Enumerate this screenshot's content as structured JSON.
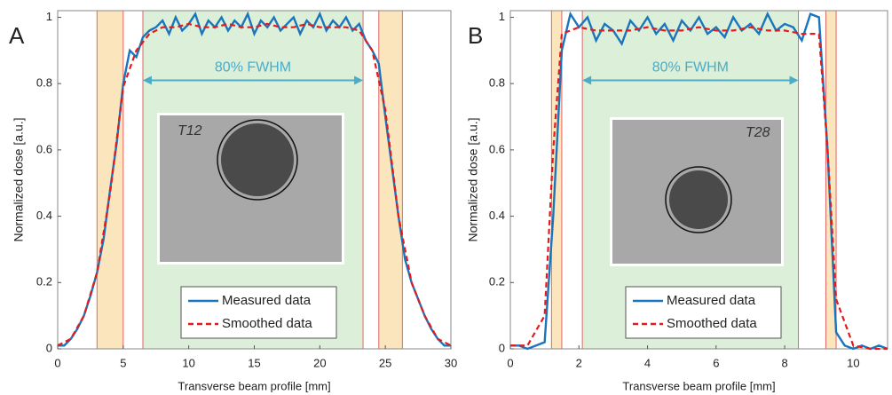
{
  "chart_data": [
    {
      "type": "line",
      "panel_label": "A",
      "xlabel": "Transverse beam profile [mm]",
      "ylabel": "Normalized dose [a.u.]",
      "xlim": [
        0,
        30
      ],
      "ylim": [
        0,
        1.02
      ],
      "xticks": [
        0,
        5,
        10,
        15,
        20,
        25,
        30
      ],
      "yticks": [
        0,
        0.2,
        0.4,
        0.6,
        0.8,
        1
      ],
      "legend": "lower center",
      "regions": [
        {
          "start": 3,
          "end": 5,
          "color": "#fbe5bd"
        },
        {
          "start": 6.5,
          "end": 23.3,
          "color": "#dcefd8"
        },
        {
          "start": 24.5,
          "end": 26.3,
          "color": "#fbe5bd"
        }
      ],
      "annotation": {
        "text": "80% FWHM",
        "start": 6.5,
        "end": 23.3,
        "y": 0.81
      },
      "inset_text": "T12",
      "series": [
        {
          "name": "Measured data",
          "color": "#1b75bc",
          "style": "solid",
          "x": [
            0,
            0.5,
            1,
            1.5,
            2,
            2.5,
            3,
            3.5,
            4,
            4.5,
            5,
            5.5,
            6,
            6.5,
            7,
            7.5,
            8,
            8.5,
            9,
            9.5,
            10,
            10.5,
            11,
            11.5,
            12,
            12.5,
            13,
            13.5,
            14,
            14.5,
            15,
            15.5,
            16,
            16.5,
            17,
            17.5,
            18,
            18.5,
            19,
            19.5,
            20,
            20.5,
            21,
            21.5,
            22,
            22.5,
            23,
            23.5,
            24,
            24.5,
            25,
            25.5,
            26,
            26.5,
            27,
            27.5,
            28,
            28.5,
            29,
            29.5,
            30
          ],
          "values": [
            0.01,
            0.01,
            0.03,
            0.06,
            0.1,
            0.16,
            0.23,
            0.33,
            0.48,
            0.62,
            0.8,
            0.9,
            0.88,
            0.94,
            0.96,
            0.97,
            0.99,
            0.95,
            1.0,
            0.96,
            0.98,
            1.01,
            0.95,
            0.99,
            0.97,
            1.0,
            0.96,
            0.99,
            0.97,
            1.01,
            0.95,
            0.99,
            0.97,
            1.0,
            0.96,
            0.98,
            1.0,
            0.95,
            0.99,
            0.97,
            1.01,
            0.96,
            0.99,
            0.97,
            1.0,
            0.96,
            0.98,
            0.93,
            0.9,
            0.86,
            0.7,
            0.55,
            0.4,
            0.27,
            0.2,
            0.15,
            0.1,
            0.06,
            0.03,
            0.01,
            0.01
          ]
        },
        {
          "name": "Smoothed data",
          "color": "#e41a1c",
          "style": "dashed",
          "x": [
            0,
            1,
            2,
            3,
            4,
            5,
            6,
            7,
            8,
            9,
            10,
            11,
            12,
            13,
            14,
            15,
            16,
            17,
            18,
            19,
            20,
            21,
            22,
            23,
            24,
            25,
            26,
            27,
            28,
            29,
            30
          ],
          "values": [
            0.01,
            0.03,
            0.1,
            0.23,
            0.47,
            0.79,
            0.9,
            0.95,
            0.97,
            0.97,
            0.98,
            0.97,
            0.97,
            0.98,
            0.97,
            0.97,
            0.98,
            0.97,
            0.97,
            0.98,
            0.97,
            0.97,
            0.97,
            0.96,
            0.9,
            0.72,
            0.4,
            0.2,
            0.1,
            0.03,
            0.01
          ]
        }
      ]
    },
    {
      "type": "line",
      "panel_label": "B",
      "xlabel": "Transverse beam profile [mm]",
      "ylabel": "Normalized dose [a.u.]",
      "xlim": [
        0,
        11
      ],
      "ylim": [
        0,
        1.02
      ],
      "xticks": [
        0,
        2,
        4,
        6,
        8,
        10
      ],
      "yticks": [
        0,
        0.2,
        0.4,
        0.6,
        0.8,
        1
      ],
      "legend": "lower center",
      "regions": [
        {
          "start": 1.2,
          "end": 1.5,
          "color": "#fbe5bd"
        },
        {
          "start": 2.1,
          "end": 8.4,
          "color": "#dcefd8"
        },
        {
          "start": 9.2,
          "end": 9.5,
          "color": "#fbe5bd"
        }
      ],
      "annotation": {
        "text": "80% FWHM",
        "start": 2.1,
        "end": 8.4,
        "y": 0.81
      },
      "inset_text": "T28",
      "series": [
        {
          "name": "Measured data",
          "color": "#1b75bc",
          "style": "solid",
          "x": [
            0,
            0.25,
            0.5,
            0.75,
            1,
            1.25,
            1.5,
            1.75,
            2,
            2.25,
            2.5,
            2.75,
            3,
            3.25,
            3.5,
            3.75,
            4,
            4.25,
            4.5,
            4.75,
            5,
            5.25,
            5.5,
            5.75,
            6,
            6.25,
            6.5,
            6.75,
            7,
            7.25,
            7.5,
            7.75,
            8,
            8.25,
            8.5,
            8.75,
            9,
            9.25,
            9.5,
            9.75,
            10,
            10.25,
            10.5,
            10.75,
            11
          ],
          "values": [
            0.01,
            0.01,
            0.0,
            0.01,
            0.02,
            0.4,
            0.9,
            1.01,
            0.97,
            1.0,
            0.93,
            0.98,
            0.96,
            0.92,
            0.99,
            0.96,
            1.0,
            0.95,
            0.98,
            0.93,
            0.99,
            0.96,
            1.0,
            0.95,
            0.97,
            0.94,
            1.0,
            0.96,
            0.98,
            0.95,
            1.01,
            0.96,
            0.98,
            0.97,
            0.93,
            1.01,
            1.0,
            0.6,
            0.05,
            0.01,
            0.0,
            0.01,
            0.0,
            0.01,
            0.0
          ]
        },
        {
          "name": "Smoothed data",
          "color": "#e41a1c",
          "style": "dashed",
          "x": [
            0,
            0.5,
            1,
            1.25,
            1.5,
            2,
            2.5,
            3,
            3.5,
            4,
            4.5,
            5,
            5.5,
            6,
            6.5,
            7,
            7.5,
            8,
            8.5,
            9,
            9.25,
            9.5,
            10,
            10.5,
            11
          ],
          "values": [
            0.01,
            0.01,
            0.1,
            0.6,
            0.95,
            0.97,
            0.96,
            0.96,
            0.96,
            0.97,
            0.96,
            0.96,
            0.97,
            0.96,
            0.96,
            0.97,
            0.96,
            0.96,
            0.95,
            0.95,
            0.6,
            0.15,
            0.01,
            0.0,
            0.0
          ]
        }
      ]
    }
  ]
}
